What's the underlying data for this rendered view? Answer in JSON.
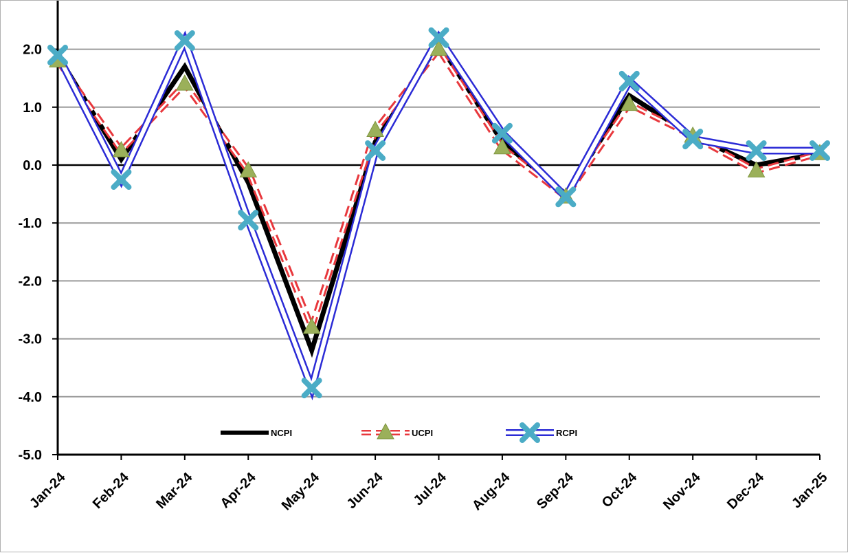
{
  "chart_data": {
    "type": "line",
    "title": "",
    "xlabel": "",
    "ylabel": "",
    "categories": [
      "Jan-24",
      "Feb-24",
      "Mar-24",
      "Apr-24",
      "May-24",
      "Jun-24",
      "Jul-24",
      "Aug-24",
      "Sep-24",
      "Oct-24",
      "Nov-24",
      "Dec-24",
      "Jan-25"
    ],
    "ylim": [
      -5.0,
      2.6
    ],
    "yticks": [
      -5.0,
      -4.0,
      -3.0,
      -2.0,
      -1.0,
      0.0,
      1.0,
      2.0
    ],
    "ytick_labels": [
      "-5.0",
      "-4.0",
      "-3.0",
      "-2.0",
      "-1.0",
      "0.0",
      "1.0",
      "2.0"
    ],
    "grid": true,
    "legend_position": "bottom-center",
    "series": [
      {
        "name": "NCPI",
        "color": "#000000",
        "style": "solid-thick",
        "values": [
          1.9,
          0.1,
          1.7,
          -0.3,
          -3.2,
          0.4,
          2.1,
          0.4,
          -0.5,
          1.2,
          0.5,
          0.0,
          0.2
        ]
      },
      {
        "name": "UCPI",
        "color": "#e8383d",
        "marker_color": "#9bb05a",
        "style": "dashed",
        "marker": "triangle",
        "values": [
          1.8,
          0.25,
          1.4,
          -0.1,
          -2.8,
          0.6,
          2.0,
          0.3,
          -0.55,
          1.05,
          0.5,
          -0.1,
          0.2
        ]
      },
      {
        "name": "RCPI",
        "color": "#2b2bd6",
        "marker_color": "#4bacc6",
        "style": "double",
        "marker": "x",
        "values": [
          1.9,
          -0.25,
          2.15,
          -0.95,
          -3.85,
          0.25,
          2.2,
          0.55,
          -0.55,
          1.45,
          0.45,
          0.25,
          0.25
        ]
      }
    ]
  }
}
